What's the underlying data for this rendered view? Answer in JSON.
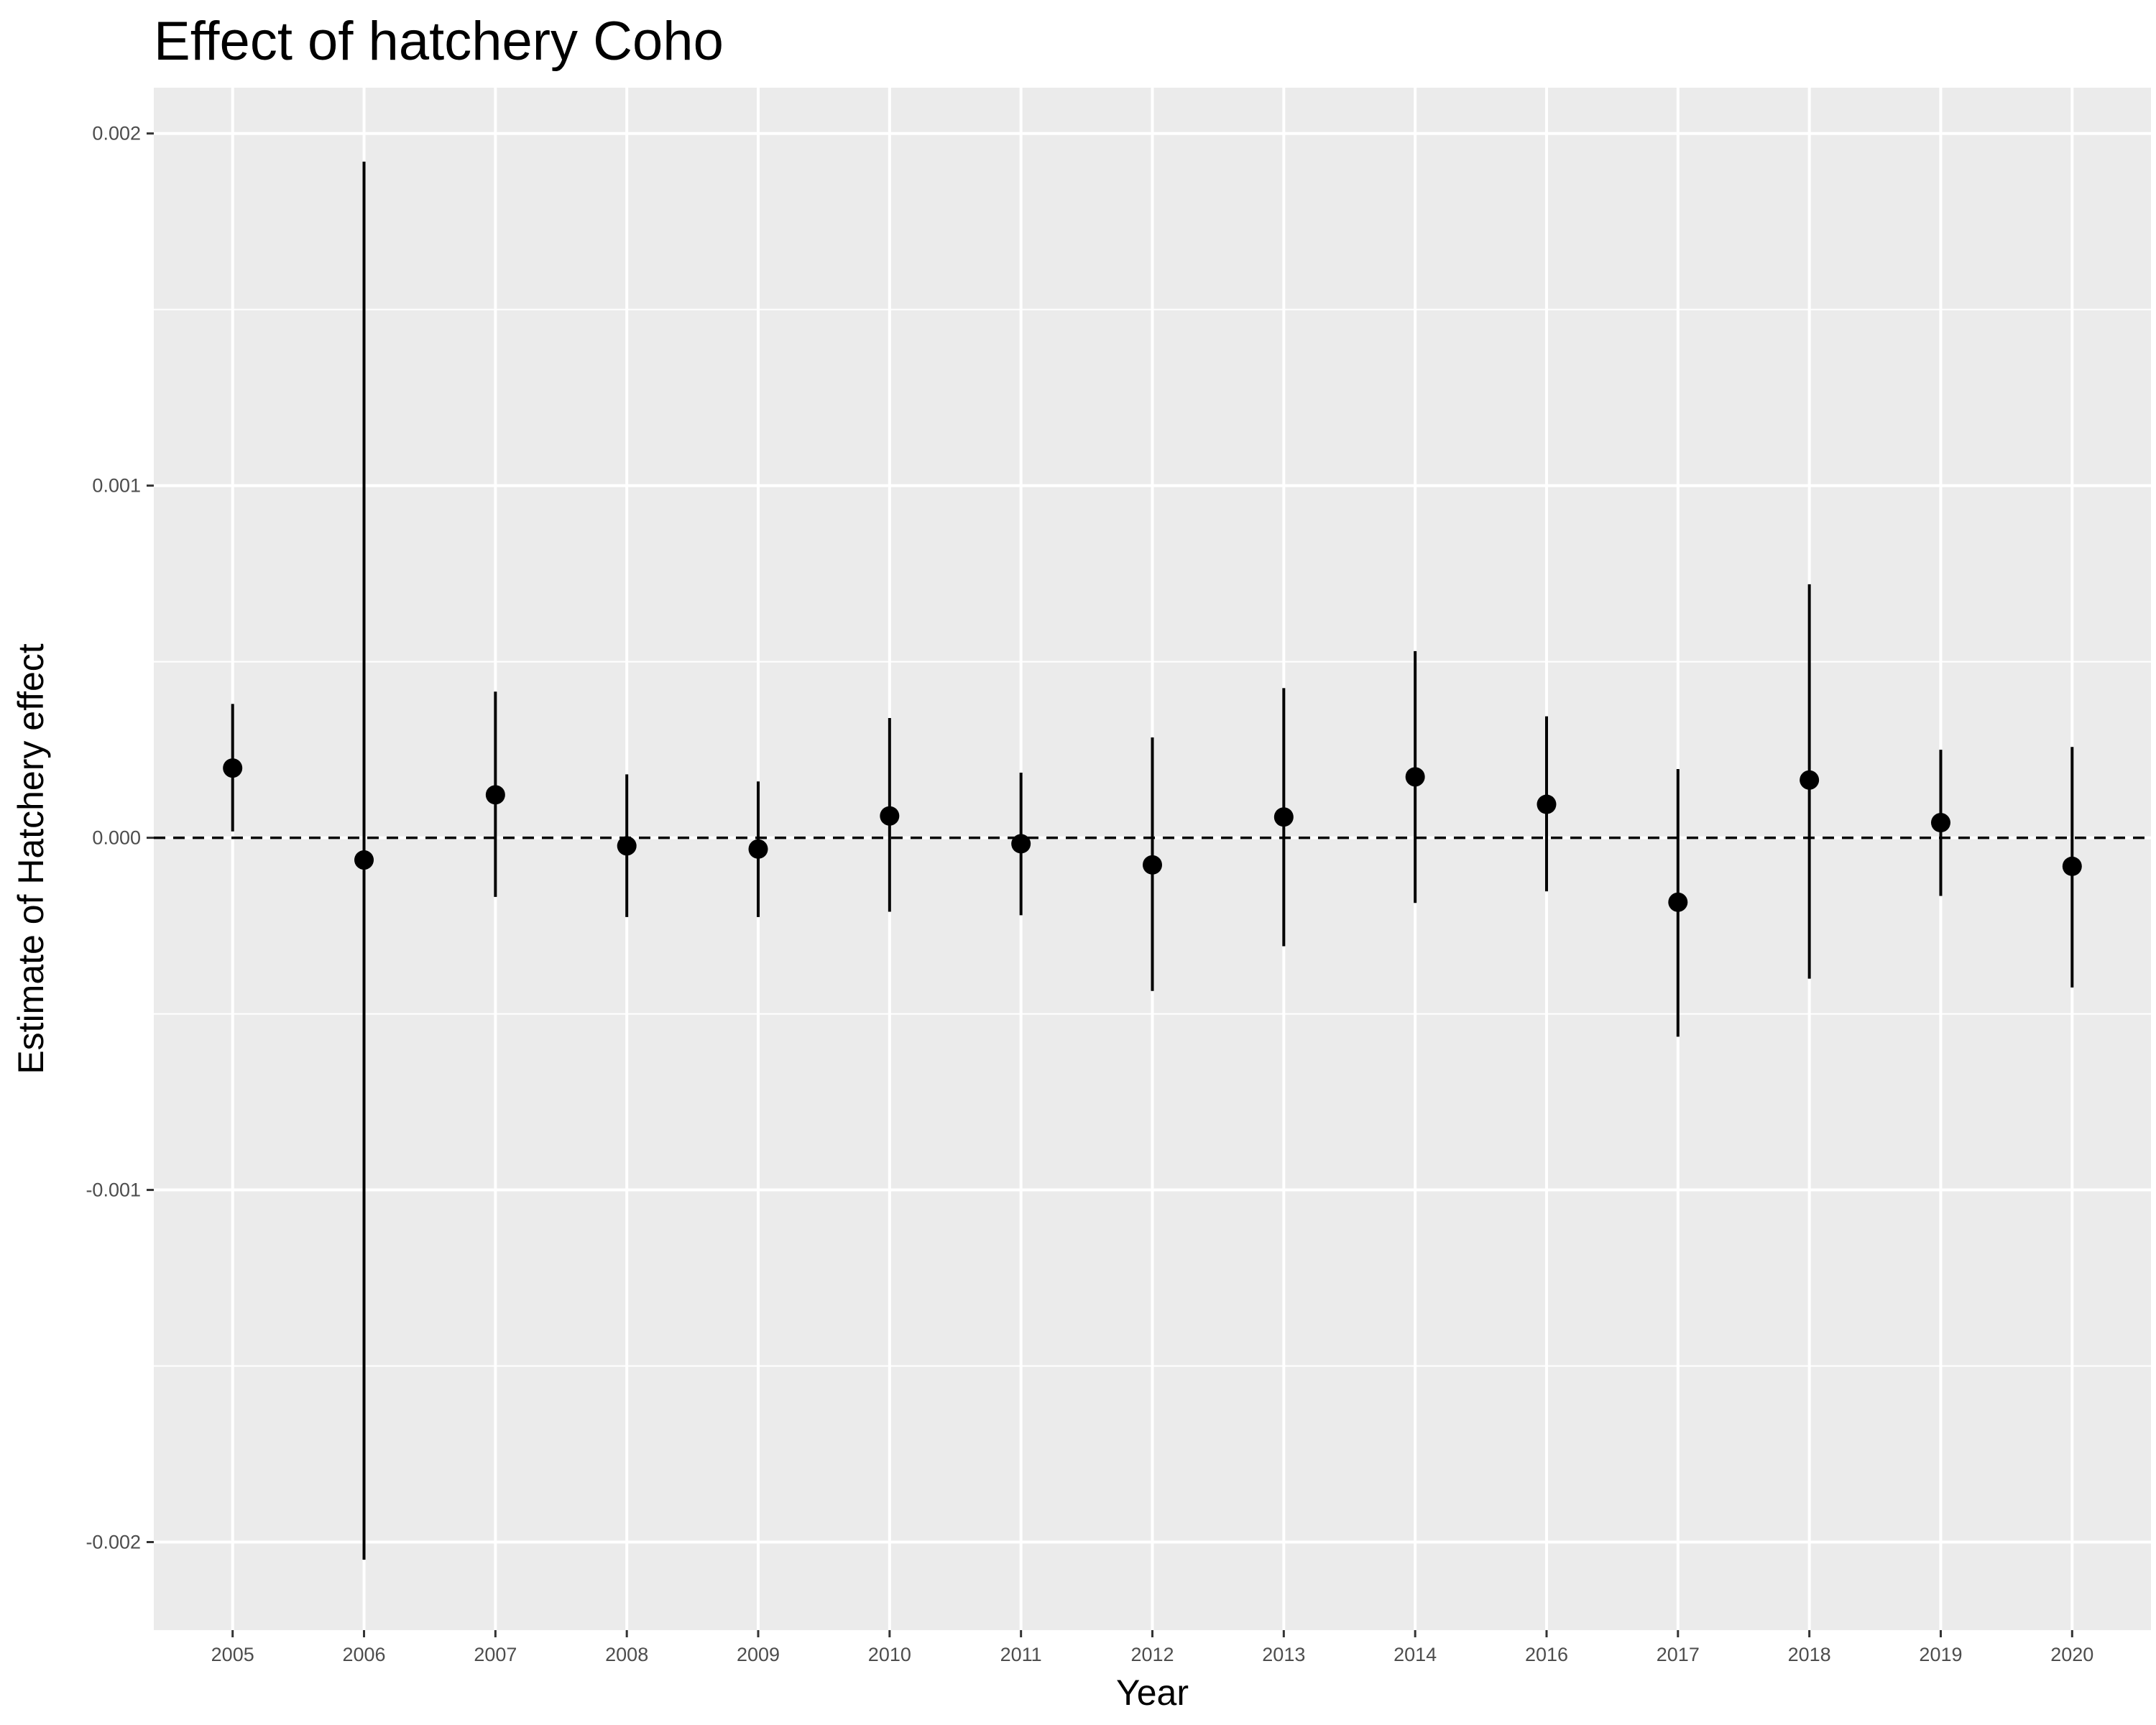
{
  "chart_data": {
    "type": "scatter",
    "title": "Effect of hatchery Coho",
    "xlabel": "Year",
    "ylabel": "Estimate of Hatchery effect",
    "categories": [
      "2005",
      "2006",
      "2007",
      "2008",
      "2009",
      "2010",
      "2011",
      "2012",
      "2013",
      "2014",
      "2016",
      "2017",
      "2018",
      "2019",
      "2020"
    ],
    "values": [
      0.000198,
      -6.3e-05,
      0.000122,
      -2.3e-05,
      -3.2e-05,
      6.2e-05,
      -1.7e-05,
      -7.7e-05,
      5.9e-05,
      0.000173,
      9.5e-05,
      -0.000183,
      0.000164,
      4.3e-05,
      -8.1e-05
    ],
    "lower": [
      1.8e-05,
      -0.00205,
      -0.000168,
      -0.000225,
      -0.000225,
      -0.00021,
      -0.00022,
      -0.000435,
      -0.000308,
      -0.000185,
      -0.000152,
      -0.000565,
      -0.0004,
      -0.000165,
      -0.000425
    ],
    "upper": [
      0.00038,
      0.00192,
      0.000415,
      0.00018,
      0.00016,
      0.00034,
      0.000185,
      0.000285,
      0.000425,
      0.00053,
      0.000345,
      0.000195,
      0.00072,
      0.00025,
      0.000258
    ],
    "ylim": [
      -0.00225,
      0.00213
    ],
    "yticks": [
      -0.002,
      -0.001,
      0.0,
      0.001,
      0.002
    ],
    "ytick_labels": [
      "-0.002",
      "-0.001",
      "0.000",
      "0.001",
      "0.002"
    ],
    "reference_line": {
      "y": 0,
      "style": "dashed"
    },
    "grid": true,
    "legend": "none",
    "colors": {
      "panel": "#ebebeb",
      "grid": "#ffffff",
      "marks": "#000000",
      "ticks": "#4d4d4d"
    }
  }
}
